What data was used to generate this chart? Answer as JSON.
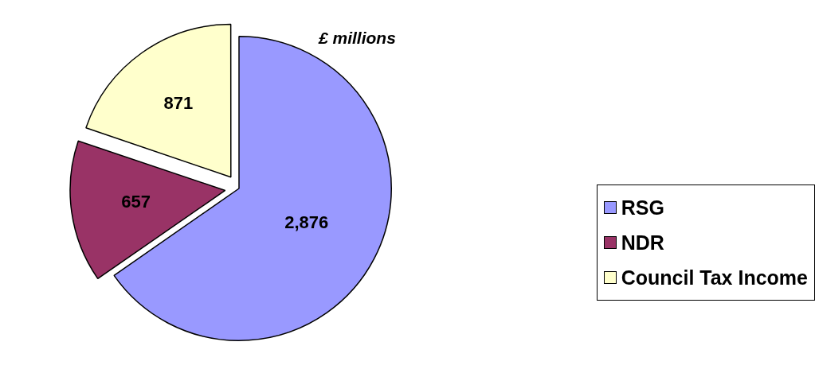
{
  "chart_data": {
    "type": "pie",
    "title": "£ millions",
    "categories": [
      "RSG",
      "NDR",
      "Council Tax Income"
    ],
    "values": [
      2876,
      657,
      871
    ],
    "colors": [
      "#9999ff",
      "#993366",
      "#ffffcc"
    ],
    "value_labels": [
      "2,876",
      "657",
      "871"
    ],
    "legend": "right"
  }
}
